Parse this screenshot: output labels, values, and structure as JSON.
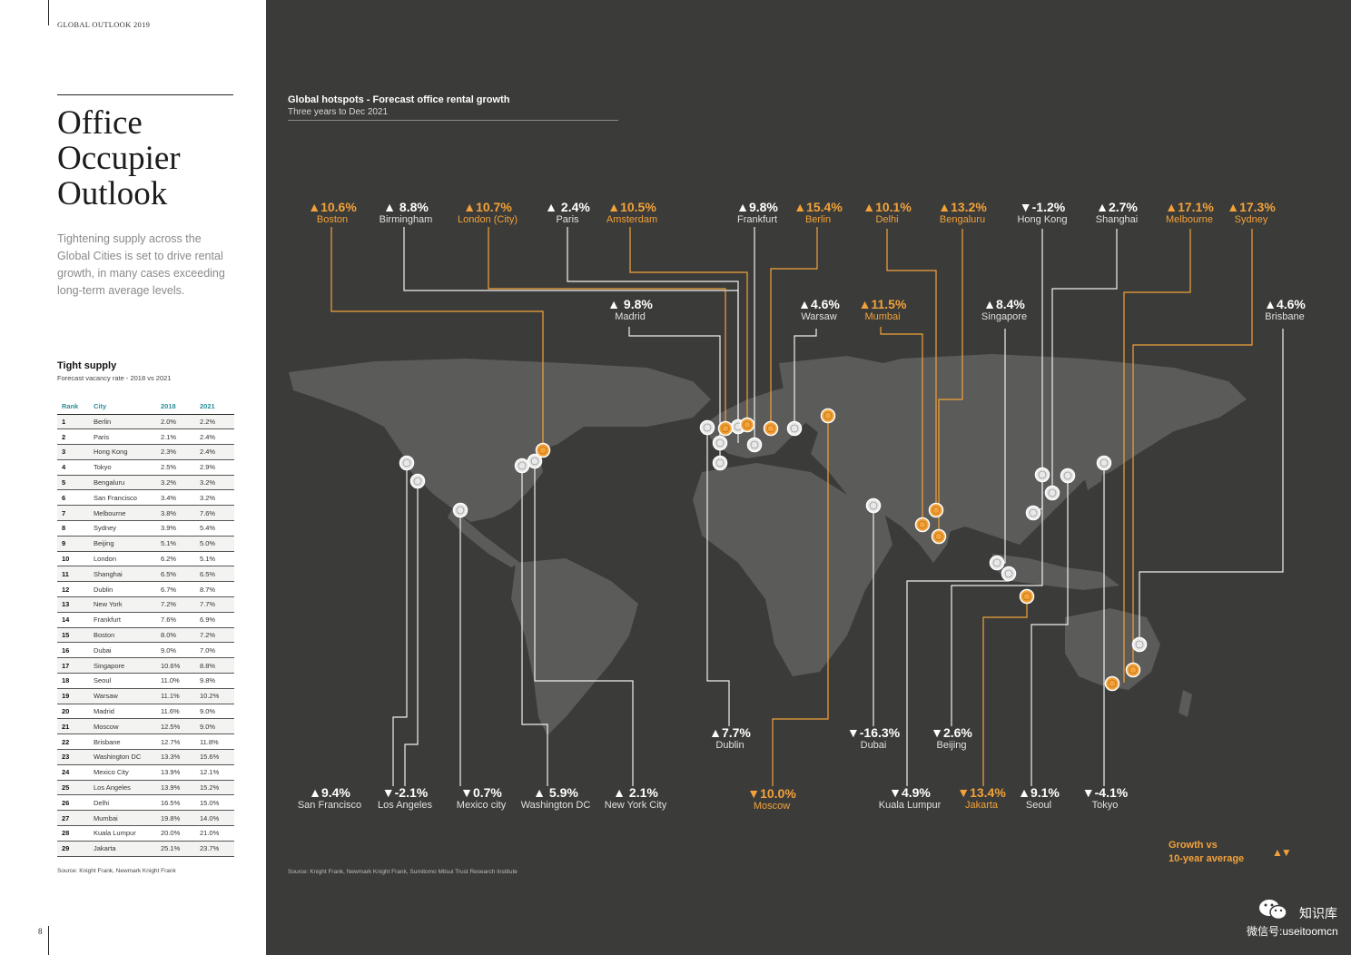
{
  "running_head": "GLOBAL OUTLOOK 2019",
  "page_number": "8",
  "page_title": [
    "Office",
    "Occupier",
    "Outlook"
  ],
  "intro": "Tightening supply across the Global Cities is set to drive rental growth, in many cases exceeding long-term average levels.",
  "table": {
    "title": "Tight supply",
    "subtitle": "Forecast vacancy rate - 2018 vs 2021",
    "headers": [
      "Rank",
      "City",
      "2018",
      "2021"
    ],
    "rows": [
      [
        "1",
        "Berlin",
        "2.0%",
        "2.2%"
      ],
      [
        "2",
        "Paris",
        "2.1%",
        "2.4%"
      ],
      [
        "3",
        "Hong Kong",
        "2.3%",
        "2.4%"
      ],
      [
        "4",
        "Tokyo",
        "2.5%",
        "2.9%"
      ],
      [
        "5",
        "Bengaluru",
        "3.2%",
        "3.2%"
      ],
      [
        "6",
        "San Francisco",
        "3.4%",
        "3.2%"
      ],
      [
        "7",
        "Melbourne",
        "3.8%",
        "7.6%"
      ],
      [
        "8",
        "Sydney",
        "3.9%",
        "5.4%"
      ],
      [
        "9",
        "Beijing",
        "5.1%",
        "5.0%"
      ],
      [
        "10",
        "London",
        "6.2%",
        "5.1%"
      ],
      [
        "11",
        "Shanghai",
        "6.5%",
        "6.5%"
      ],
      [
        "12",
        "Dublin",
        "6.7%",
        "8.7%"
      ],
      [
        "13",
        "New York",
        "7.2%",
        "7.7%"
      ],
      [
        "14",
        "Frankfurt",
        "7.6%",
        "6.9%"
      ],
      [
        "15",
        "Boston",
        "8.0%",
        "7.2%"
      ],
      [
        "16",
        "Dubai",
        "9.0%",
        "7.0%"
      ],
      [
        "17",
        "Singapore",
        "10.6%",
        "8.8%"
      ],
      [
        "18",
        "Seoul",
        "11.0%",
        "9.8%"
      ],
      [
        "19",
        "Warsaw",
        "11.1%",
        "10.2%"
      ],
      [
        "20",
        "Madrid",
        "11.6%",
        "9.0%"
      ],
      [
        "21",
        "Moscow",
        "12.5%",
        "9.0%"
      ],
      [
        "22",
        "Brisbane",
        "12.7%",
        "11.8%"
      ],
      [
        "23",
        "Washington DC",
        "13.3%",
        "15.6%"
      ],
      [
        "24",
        "Mexico City",
        "13.9%",
        "12.1%"
      ],
      [
        "25",
        "Los Angeles",
        "13.9%",
        "15.2%"
      ],
      [
        "26",
        "Delhi",
        "16.5%",
        "15.0%"
      ],
      [
        "27",
        "Mumbai",
        "19.8%",
        "14.0%"
      ],
      [
        "28",
        "Kuala Lumpur",
        "20.0%",
        "21.0%"
      ],
      [
        "29",
        "Jakarta",
        "25.1%",
        "23.7%"
      ]
    ],
    "source": "Source: Knight Frank, Newmark Knight Frank"
  },
  "map": {
    "title": "Global hotspots - Forecast office rental growth",
    "subtitle": "Three years to Dec 2021",
    "source": "Source: Knight Frank, Newmark Knight Frank, Sumitomo Mitsui Trust Research Institute",
    "legend": [
      "Growth vs",
      "10-year average"
    ],
    "legend_icon": "▲▼",
    "colors": {
      "above_average": "#f3a23a",
      "other": "#ffffff",
      "background": "#3b3b39",
      "land": "#5b5b59"
    },
    "cities": [
      {
        "name": "Boston",
        "value": "▲10.6%",
        "above_average": true
      },
      {
        "name": "Birmingham",
        "value": "▲ 8.8%",
        "above_average": false
      },
      {
        "name": "London (City)",
        "value": "▲10.7%",
        "above_average": true
      },
      {
        "name": "Paris",
        "value": "▲ 2.4%",
        "above_average": false
      },
      {
        "name": "Amsterdam",
        "value": "▲10.5%",
        "above_average": true
      },
      {
        "name": "Frankfurt",
        "value": "▲9.8%",
        "above_average": false
      },
      {
        "name": "Berlin",
        "value": "▲15.4%",
        "above_average": true
      },
      {
        "name": "Delhi",
        "value": "▲10.1%",
        "above_average": true
      },
      {
        "name": "Bengaluru",
        "value": "▲13.2%",
        "above_average": true
      },
      {
        "name": "Hong Kong",
        "value": "▼-1.2%",
        "above_average": false
      },
      {
        "name": "Shanghai",
        "value": "▲2.7%",
        "above_average": false
      },
      {
        "name": "Melbourne",
        "value": "▲17.1%",
        "above_average": true
      },
      {
        "name": "Sydney",
        "value": "▲17.3%",
        "above_average": true
      },
      {
        "name": "Madrid",
        "value": "▲ 9.8%",
        "above_average": false
      },
      {
        "name": "Warsaw",
        "value": "▲4.6%",
        "above_average": false
      },
      {
        "name": "Mumbai",
        "value": "▲11.5%",
        "above_average": true
      },
      {
        "name": "Singapore",
        "value": "▲8.4%",
        "above_average": false
      },
      {
        "name": "Brisbane",
        "value": "▲4.6%",
        "above_average": false
      },
      {
        "name": "Dublin",
        "value": "▲7.7%",
        "above_average": false
      },
      {
        "name": "Dubai",
        "value": "▼-16.3%",
        "above_average": false
      },
      {
        "name": "Beijing",
        "value": "▼2.6%",
        "above_average": false
      },
      {
        "name": "San Francisco",
        "value": "▲9.4%",
        "above_average": false
      },
      {
        "name": "Los Angeles",
        "value": "▼-2.1%",
        "above_average": false
      },
      {
        "name": "Mexico city",
        "value": "▼0.7%",
        "above_average": false
      },
      {
        "name": "Washington DC",
        "value": "▲ 5.9%",
        "above_average": false
      },
      {
        "name": "New York City",
        "value": "▲ 2.1%",
        "above_average": false
      },
      {
        "name": "Moscow",
        "value": "▼10.0%",
        "above_average": true
      },
      {
        "name": "Kuala Lumpur",
        "value": "▼4.9%",
        "above_average": false
      },
      {
        "name": "Jakarta",
        "value": "▼13.4%",
        "above_average": true
      },
      {
        "name": "Seoul",
        "value": "▲9.1%",
        "above_average": false
      },
      {
        "name": "Tokyo",
        "value": "▼-4.1%",
        "above_average": false
      }
    ]
  },
  "watermark": {
    "name": "知识库",
    "id": "微信号:useitoomcn"
  }
}
